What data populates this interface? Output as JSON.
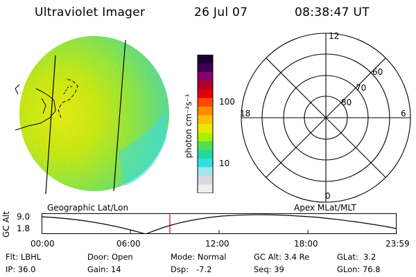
{
  "header": {
    "title": "Ultraviolet Imager",
    "date": "26 Jul 07",
    "time": "08:38:47 UT"
  },
  "colorbar": {
    "unit_label": "photon cm⁻²s⁻¹",
    "ticks": [
      "100",
      "10"
    ],
    "colors": [
      "#1a0033",
      "#3b0050",
      "#8a006a",
      "#b0002a",
      "#e00010",
      "#ff4a00",
      "#ff8c00",
      "#ffc000",
      "#e8e800",
      "#a8f000",
      "#50e050",
      "#20d8a0",
      "#30e0e0",
      "#a0e8f0",
      "#d8d8e0",
      "#efefef"
    ]
  },
  "polar": {
    "hour_labels": {
      "top": "12",
      "right": "6",
      "left": "18",
      "bottom": "0"
    },
    "lat_labels": [
      "60",
      "70",
      "80"
    ]
  },
  "labels": {
    "left_caption": "Geographic Lat/Lon",
    "right_caption": "Apex MLat/MLT"
  },
  "altitude_plot": {
    "axis_label": "GC Alt",
    "y_top": "9.0",
    "y_bottom": "1.8",
    "x_ticks": [
      "00:00",
      "06:00",
      "12:00",
      "18:00",
      "23:59"
    ],
    "marker_color": "#e00000"
  },
  "info": {
    "row1": {
      "flt": "Flt: LBHL",
      "door": "Door: Open",
      "mode": "Mode: Normal",
      "gcalt": "GC Alt: 3.4 Re",
      "glat": "GLat:  3.2"
    },
    "row2": {
      "ip": "IP: 36.0",
      "gain": "Gain: 14",
      "dsp": "Dsp:   -7.2",
      "seq": "Seq: 39",
      "glon": "GLon: 76.8"
    }
  }
}
